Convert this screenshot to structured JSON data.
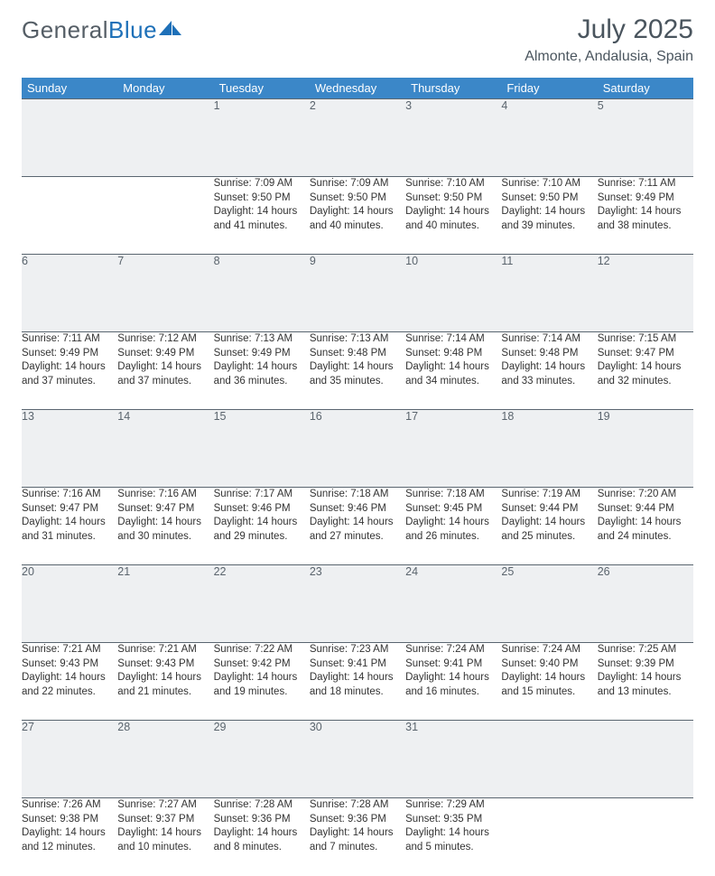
{
  "colors": {
    "header_bg": "#3b87c8",
    "header_text": "#ffffff",
    "daynum_bg": "#eef0f2",
    "daynum_text": "#5a646d",
    "cell_border": "#5a6670",
    "body_text": "#333333",
    "title_text": "#4a555e",
    "logo_gray": "#555e66",
    "logo_blue": "#1e70b8",
    "logo_shape": "#1e70b8"
  },
  "fonts": {
    "family": "Arial, Helvetica, sans-serif",
    "month_size_pt": 22,
    "location_size_pt": 12,
    "header_size_pt": 10,
    "daynum_size_pt": 9.5,
    "body_size_pt": 8.5
  },
  "logo": {
    "word1": "General",
    "word2": "Blue"
  },
  "title": {
    "month": "July 2025",
    "location": "Almonte, Andalusia, Spain"
  },
  "weekdays": [
    "Sunday",
    "Monday",
    "Tuesday",
    "Wednesday",
    "Thursday",
    "Friday",
    "Saturday"
  ],
  "layout": {
    "columns": 7,
    "rows": 5,
    "first_weekday_index": 2,
    "days_in_month": 31
  },
  "weeks": [
    [
      null,
      null,
      {
        "n": "1",
        "sr": "Sunrise: 7:09 AM",
        "ss": "Sunset: 9:50 PM",
        "d1": "Daylight: 14 hours",
        "d2": "and 41 minutes."
      },
      {
        "n": "2",
        "sr": "Sunrise: 7:09 AM",
        "ss": "Sunset: 9:50 PM",
        "d1": "Daylight: 14 hours",
        "d2": "and 40 minutes."
      },
      {
        "n": "3",
        "sr": "Sunrise: 7:10 AM",
        "ss": "Sunset: 9:50 PM",
        "d1": "Daylight: 14 hours",
        "d2": "and 40 minutes."
      },
      {
        "n": "4",
        "sr": "Sunrise: 7:10 AM",
        "ss": "Sunset: 9:50 PM",
        "d1": "Daylight: 14 hours",
        "d2": "and 39 minutes."
      },
      {
        "n": "5",
        "sr": "Sunrise: 7:11 AM",
        "ss": "Sunset: 9:49 PM",
        "d1": "Daylight: 14 hours",
        "d2": "and 38 minutes."
      }
    ],
    [
      {
        "n": "6",
        "sr": "Sunrise: 7:11 AM",
        "ss": "Sunset: 9:49 PM",
        "d1": "Daylight: 14 hours",
        "d2": "and 37 minutes."
      },
      {
        "n": "7",
        "sr": "Sunrise: 7:12 AM",
        "ss": "Sunset: 9:49 PM",
        "d1": "Daylight: 14 hours",
        "d2": "and 37 minutes."
      },
      {
        "n": "8",
        "sr": "Sunrise: 7:13 AM",
        "ss": "Sunset: 9:49 PM",
        "d1": "Daylight: 14 hours",
        "d2": "and 36 minutes."
      },
      {
        "n": "9",
        "sr": "Sunrise: 7:13 AM",
        "ss": "Sunset: 9:48 PM",
        "d1": "Daylight: 14 hours",
        "d2": "and 35 minutes."
      },
      {
        "n": "10",
        "sr": "Sunrise: 7:14 AM",
        "ss": "Sunset: 9:48 PM",
        "d1": "Daylight: 14 hours",
        "d2": "and 34 minutes."
      },
      {
        "n": "11",
        "sr": "Sunrise: 7:14 AM",
        "ss": "Sunset: 9:48 PM",
        "d1": "Daylight: 14 hours",
        "d2": "and 33 minutes."
      },
      {
        "n": "12",
        "sr": "Sunrise: 7:15 AM",
        "ss": "Sunset: 9:47 PM",
        "d1": "Daylight: 14 hours",
        "d2": "and 32 minutes."
      }
    ],
    [
      {
        "n": "13",
        "sr": "Sunrise: 7:16 AM",
        "ss": "Sunset: 9:47 PM",
        "d1": "Daylight: 14 hours",
        "d2": "and 31 minutes."
      },
      {
        "n": "14",
        "sr": "Sunrise: 7:16 AM",
        "ss": "Sunset: 9:47 PM",
        "d1": "Daylight: 14 hours",
        "d2": "and 30 minutes."
      },
      {
        "n": "15",
        "sr": "Sunrise: 7:17 AM",
        "ss": "Sunset: 9:46 PM",
        "d1": "Daylight: 14 hours",
        "d2": "and 29 minutes."
      },
      {
        "n": "16",
        "sr": "Sunrise: 7:18 AM",
        "ss": "Sunset: 9:46 PM",
        "d1": "Daylight: 14 hours",
        "d2": "and 27 minutes."
      },
      {
        "n": "17",
        "sr": "Sunrise: 7:18 AM",
        "ss": "Sunset: 9:45 PM",
        "d1": "Daylight: 14 hours",
        "d2": "and 26 minutes."
      },
      {
        "n": "18",
        "sr": "Sunrise: 7:19 AM",
        "ss": "Sunset: 9:44 PM",
        "d1": "Daylight: 14 hours",
        "d2": "and 25 minutes."
      },
      {
        "n": "19",
        "sr": "Sunrise: 7:20 AM",
        "ss": "Sunset: 9:44 PM",
        "d1": "Daylight: 14 hours",
        "d2": "and 24 minutes."
      }
    ],
    [
      {
        "n": "20",
        "sr": "Sunrise: 7:21 AM",
        "ss": "Sunset: 9:43 PM",
        "d1": "Daylight: 14 hours",
        "d2": "and 22 minutes."
      },
      {
        "n": "21",
        "sr": "Sunrise: 7:21 AM",
        "ss": "Sunset: 9:43 PM",
        "d1": "Daylight: 14 hours",
        "d2": "and 21 minutes."
      },
      {
        "n": "22",
        "sr": "Sunrise: 7:22 AM",
        "ss": "Sunset: 9:42 PM",
        "d1": "Daylight: 14 hours",
        "d2": "and 19 minutes."
      },
      {
        "n": "23",
        "sr": "Sunrise: 7:23 AM",
        "ss": "Sunset: 9:41 PM",
        "d1": "Daylight: 14 hours",
        "d2": "and 18 minutes."
      },
      {
        "n": "24",
        "sr": "Sunrise: 7:24 AM",
        "ss": "Sunset: 9:41 PM",
        "d1": "Daylight: 14 hours",
        "d2": "and 16 minutes."
      },
      {
        "n": "25",
        "sr": "Sunrise: 7:24 AM",
        "ss": "Sunset: 9:40 PM",
        "d1": "Daylight: 14 hours",
        "d2": "and 15 minutes."
      },
      {
        "n": "26",
        "sr": "Sunrise: 7:25 AM",
        "ss": "Sunset: 9:39 PM",
        "d1": "Daylight: 14 hours",
        "d2": "and 13 minutes."
      }
    ],
    [
      {
        "n": "27",
        "sr": "Sunrise: 7:26 AM",
        "ss": "Sunset: 9:38 PM",
        "d1": "Daylight: 14 hours",
        "d2": "and 12 minutes."
      },
      {
        "n": "28",
        "sr": "Sunrise: 7:27 AM",
        "ss": "Sunset: 9:37 PM",
        "d1": "Daylight: 14 hours",
        "d2": "and 10 minutes."
      },
      {
        "n": "29",
        "sr": "Sunrise: 7:28 AM",
        "ss": "Sunset: 9:36 PM",
        "d1": "Daylight: 14 hours",
        "d2": "and 8 minutes."
      },
      {
        "n": "30",
        "sr": "Sunrise: 7:28 AM",
        "ss": "Sunset: 9:36 PM",
        "d1": "Daylight: 14 hours",
        "d2": "and 7 minutes."
      },
      {
        "n": "31",
        "sr": "Sunrise: 7:29 AM",
        "ss": "Sunset: 9:35 PM",
        "d1": "Daylight: 14 hours",
        "d2": "and 5 minutes."
      },
      null,
      null
    ]
  ]
}
